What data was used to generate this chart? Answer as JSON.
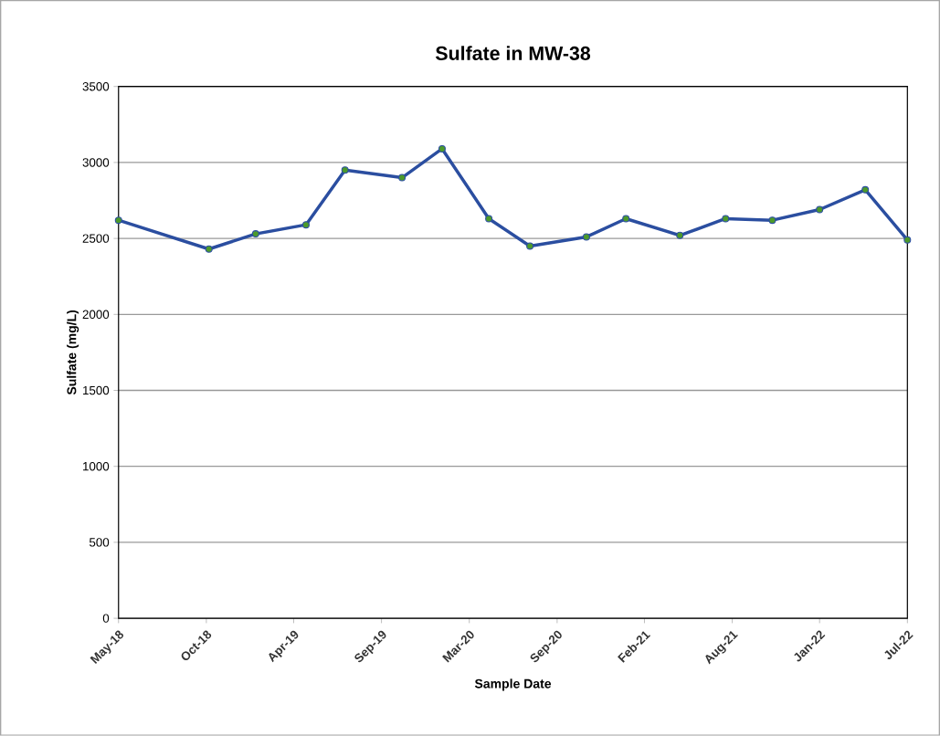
{
  "chart_data": {
    "type": "line",
    "title": "Sulfate in MW-38",
    "xlabel": "Sample Date",
    "ylabel": "Sulfate (mg/L)",
    "x": [
      "2018-05-01",
      "2018-10-24",
      "2019-01-23",
      "2019-05-01",
      "2019-07-16",
      "2019-11-04",
      "2020-01-21",
      "2020-04-21",
      "2020-07-10",
      "2020-10-28",
      "2021-01-13",
      "2021-04-28",
      "2021-07-26",
      "2021-10-25",
      "2022-01-25",
      "2022-04-24",
      "2022-07-15"
    ],
    "series": [
      {
        "color": "#2b4ea0",
        "values": [
          2620,
          2430,
          2530,
          2590,
          2950,
          2900,
          3090,
          2630,
          2450,
          2510,
          2630,
          2520,
          2630,
          2620,
          2690,
          2820,
          2490
        ]
      }
    ],
    "marker": "circle",
    "line_style": "solid",
    "grid": "y",
    "xlim": [
      "2018-05-01",
      "2022-07-15"
    ],
    "xticks": [
      {
        "value": "2018-05-01",
        "label": "May-18"
      },
      {
        "value": "2018-10-19",
        "label": "Oct-18"
      },
      {
        "value": "2019-04-07",
        "label": "Apr-19"
      },
      {
        "value": "2019-09-25",
        "label": "Sep-19"
      },
      {
        "value": "2020-03-14",
        "label": "Mar-20"
      },
      {
        "value": "2020-09-01",
        "label": "Sep-20"
      },
      {
        "value": "2021-02-18",
        "label": "Feb-21"
      },
      {
        "value": "2021-08-08",
        "label": "Aug-21"
      },
      {
        "value": "2022-01-25",
        "label": "Jan-22"
      },
      {
        "value": "2022-07-15",
        "label": "Jul-22"
      }
    ],
    "ylim": [
      0,
      3500
    ],
    "yticks": [
      0,
      500,
      1000,
      1500,
      2000,
      2500,
      3000,
      3500
    ]
  }
}
